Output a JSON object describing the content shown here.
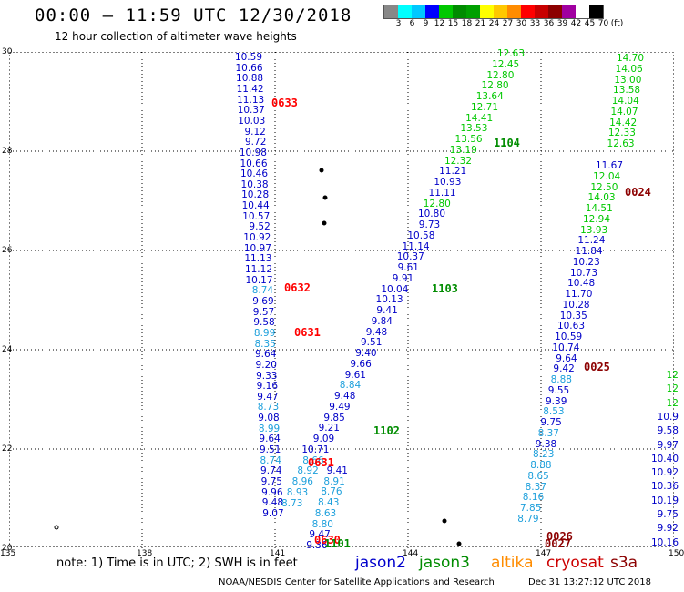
{
  "title": "00:00 – 11:59 UTC 12/30/2018",
  "subtitle": "12 hour collection of altimeter wave heights",
  "legend": {
    "swatches": [
      "#888888",
      "#00ffff",
      "#00c8ff",
      "#0000ff",
      "#00c800",
      "#008c00",
      "#00a000",
      "#ffff00",
      "#ffc800",
      "#ff8c00",
      "#ff0000",
      "#c80000",
      "#8c0000",
      "#a000a0",
      "#ffffff",
      "#000000"
    ],
    "labels": [
      "3",
      "6",
      "9",
      "12",
      "15",
      "18",
      "21",
      "24",
      "27",
      "30",
      "33",
      "36",
      "39",
      "42",
      "45",
      "70",
      "(ft)"
    ]
  },
  "axes": {
    "lon_ticks": [
      "135",
      "138",
      "141",
      "144",
      "147",
      "150"
    ],
    "lat_ticks": [
      "20",
      "22",
      "24",
      "26",
      "28",
      "30"
    ]
  },
  "passes": [
    {
      "id": "0633",
      "color": "#ff0000"
    },
    {
      "id": "0632",
      "color": "#ff0000"
    },
    {
      "id": "0631",
      "color": "#ff0000"
    },
    {
      "id": "0631b",
      "label": "0631",
      "color": "#ff0000"
    },
    {
      "id": "0630",
      "color": "#ff0000"
    },
    {
      "id": "1104",
      "color": "#008c00"
    },
    {
      "id": "1103",
      "color": "#008c00"
    },
    {
      "id": "1102",
      "color": "#008c00"
    },
    {
      "id": "1101",
      "color": "#008c00"
    },
    {
      "id": "0024",
      "color": "#8c0000"
    },
    {
      "id": "0025",
      "color": "#8c0000"
    },
    {
      "id": "0026",
      "color": "#8c0000"
    },
    {
      "id": "0027",
      "color": "#8c0000"
    }
  ],
  "tracks": {
    "jason2_left": [
      "10.59",
      "10.66",
      "10.88",
      "11.42",
      "11.13",
      "10.37",
      "10.03",
      "9.12",
      "9.72",
      "10.98",
      "10.66",
      "10.46",
      "10.38",
      "10.28",
      "10.44",
      "10.57",
      "9.52",
      "10.92",
      "10.97",
      "11.13",
      "11.12",
      "10.17",
      "8.74",
      "9.69",
      "9.57",
      "9.58",
      "8.99",
      "8.35",
      "9.64",
      "9.20",
      "9.33",
      "9.16",
      "9.47",
      "8.73",
      "9.08",
      "8.99",
      "9.64",
      "9.51",
      "8.74",
      "9.74",
      "9.75",
      "9.96",
      "9.48",
      "9.07"
    ],
    "jason2_diag": [
      "9.41",
      "8.91",
      "8.76",
      "8.43",
      "8.63",
      "8.80",
      "9.47",
      "9.36"
    ],
    "jason3_diag": [
      "12.63",
      "12.45",
      "12.80",
      "12.80",
      "13.64",
      "12.71",
      "14.41",
      "13.53",
      "13.56",
      "13.19",
      "12.32",
      "11.21",
      "10.93",
      "11.11",
      "12.80",
      "10.80",
      "9.73",
      "10.58",
      "11.14",
      "10.37",
      "9.61",
      "9.91",
      "10.04",
      "10.13",
      "9.41",
      "9.84",
      "9.48",
      "9.51",
      "9.40",
      "9.66",
      "9.61",
      "8.84",
      "9.48",
      "9.49",
      "9.85",
      "9.21",
      "9.09",
      "10.71",
      "8.66",
      "8.92",
      "8.96",
      "8.93",
      "8.73"
    ],
    "s3a_mid": [
      "11.67",
      "12.04",
      "12.50",
      "14.03",
      "14.51",
      "12.94",
      "13.93",
      "11.24",
      "11.84",
      "10.23",
      "10.73",
      "10.48",
      "11.70",
      "10.28",
      "10.35",
      "10.63",
      "10.59",
      "10.74",
      "9.64",
      "9.42",
      "8.88",
      "9.55",
      "9.39",
      "8.53",
      "9.75",
      "8.37",
      "9.38",
      "8.23",
      "8.88",
      "8.65",
      "8.37",
      "8.16",
      "7.85",
      "8.79"
    ],
    "s3a_top": [
      "14.70",
      "14.06",
      "13.00",
      "13.58",
      "14.04",
      "14.07",
      "14.42",
      "12.33",
      "12.63"
    ],
    "right_edge": [
      "12",
      "12",
      "12",
      "10.9",
      "9.58",
      "9.97",
      "10.40",
      "10.92",
      "10.36",
      "10.19",
      "9.75",
      "9.92",
      "10.16"
    ]
  },
  "footer": {
    "note": "note: 1) Time is in UTC; 2) SWH is in feet",
    "satellites": [
      {
        "name": "jason2",
        "color": "#0000cc"
      },
      {
        "name": "jason3",
        "color": "#008c00"
      },
      {
        "name": "altika",
        "color": "#ff8c00"
      },
      {
        "name": "cryosat",
        "color": "#cc0000"
      },
      {
        "name": "s3a",
        "color": "#8c0000"
      }
    ],
    "credit": "NOAA/NESDIS Center for Satellite Applications and Research",
    "timestamp": "Dec 31 13:27:12 UTC 2018"
  }
}
